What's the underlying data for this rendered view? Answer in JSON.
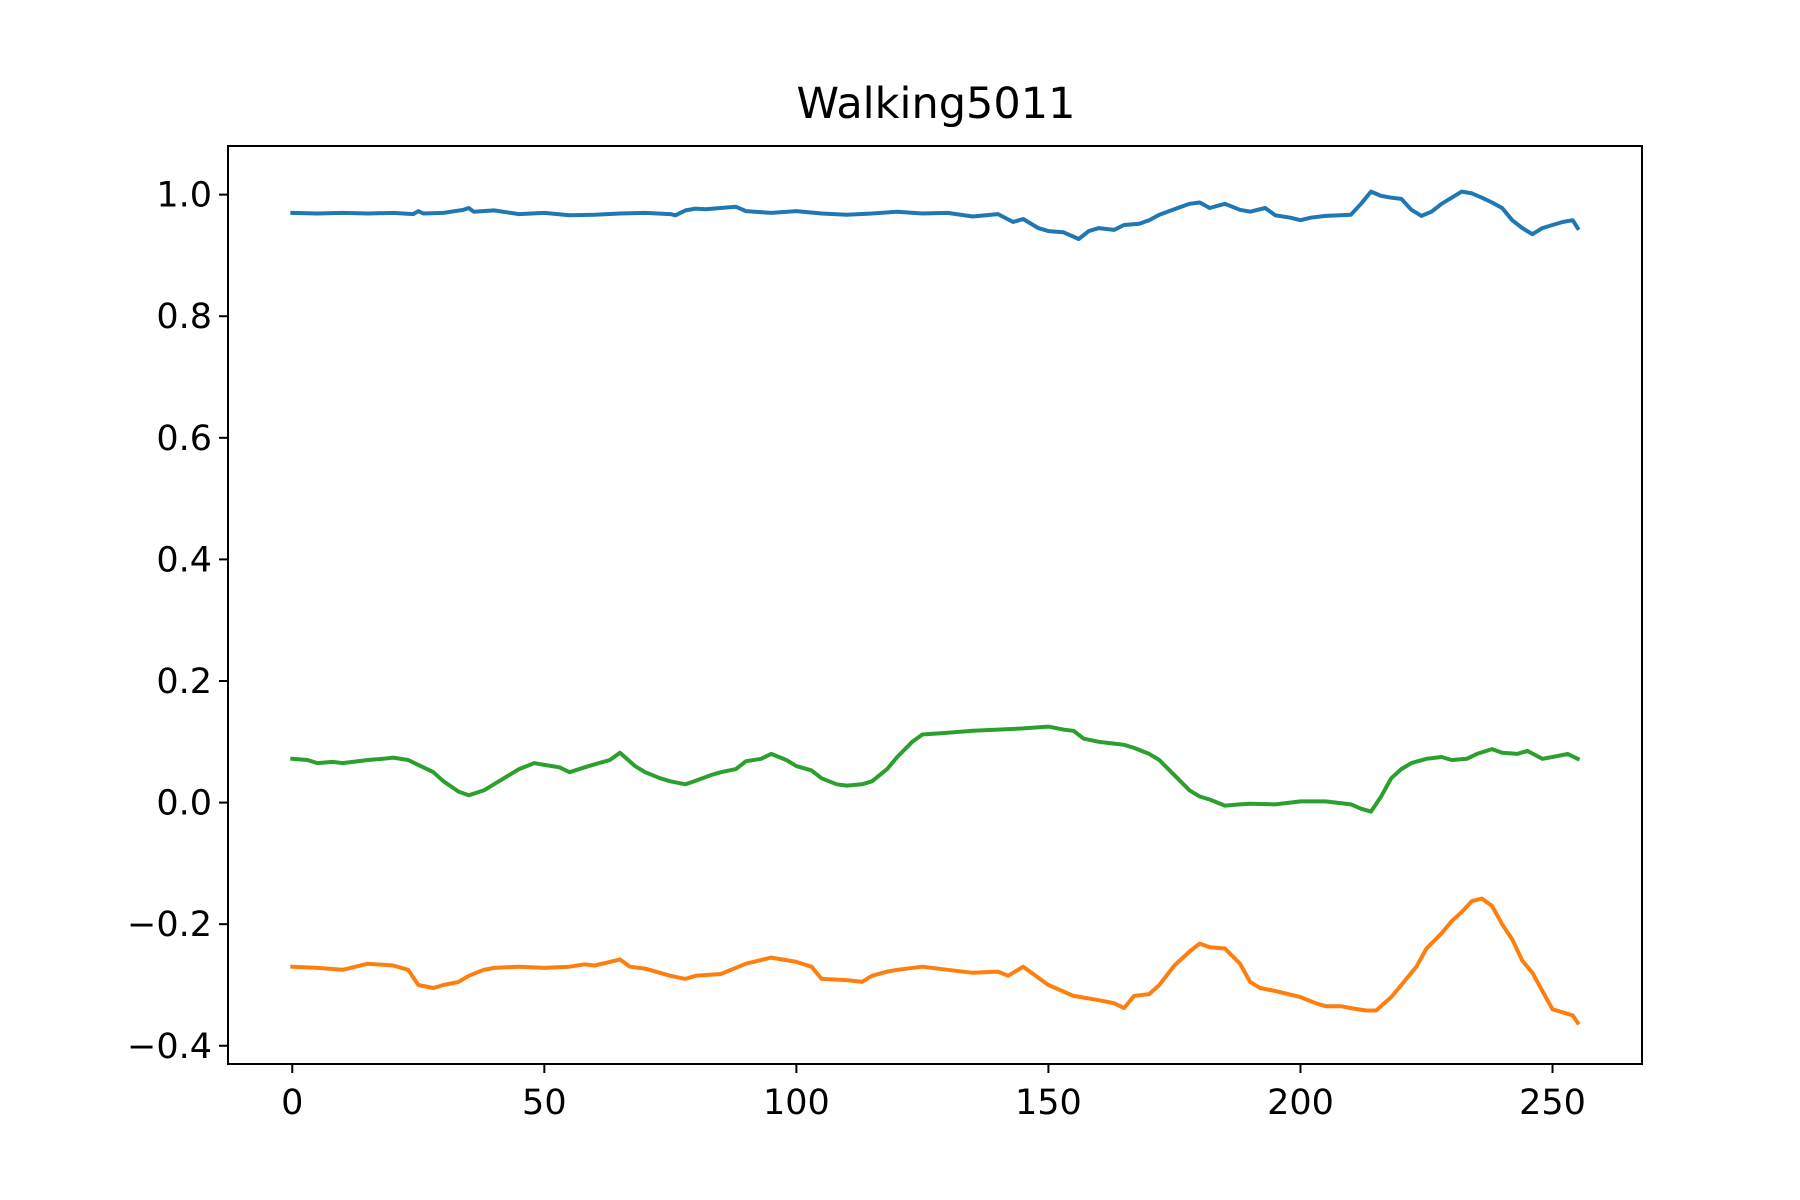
{
  "chart_data": {
    "type": "line",
    "title": "Walking5011",
    "xlabel": "",
    "ylabel": "",
    "xlim": [
      -12.75,
      267.75
    ],
    "ylim": [
      -0.43,
      1.08
    ],
    "xticks": [
      0,
      50,
      100,
      150,
      200,
      250
    ],
    "yticks": [
      -0.4,
      -0.2,
      0.0,
      0.2,
      0.4,
      0.6,
      0.8,
      1.0
    ],
    "xtick_labels": [
      "0",
      "50",
      "100",
      "150",
      "200",
      "250"
    ],
    "ytick_labels": [
      "−0.4",
      "−0.2",
      "0.0",
      "0.2",
      "0.4",
      "0.6",
      "0.8",
      "1.0"
    ],
    "grid": false,
    "legend": "none",
    "series": [
      {
        "color": "#1f77b4",
        "x": [
          0,
          5,
          10,
          15,
          20,
          24,
          25,
          26,
          30,
          34,
          35,
          36,
          40,
          45,
          50,
          55,
          60,
          65,
          70,
          75,
          76,
          78,
          80,
          82,
          85,
          88,
          90,
          95,
          100,
          105,
          110,
          115,
          120,
          125,
          130,
          135,
          140,
          143,
          145,
          148,
          150,
          153,
          156,
          158,
          160,
          163,
          165,
          168,
          170,
          172,
          175,
          178,
          180,
          182,
          185,
          188,
          190,
          193,
          195,
          198,
          200,
          202,
          205,
          208,
          210,
          212,
          214,
          216,
          218,
          220,
          222,
          224,
          226,
          228,
          230,
          232,
          234,
          236,
          238,
          240,
          242,
          244,
          246,
          248,
          250,
          252,
          254,
          255
        ],
        "y": [
          0.97,
          0.969,
          0.97,
          0.969,
          0.97,
          0.968,
          0.973,
          0.969,
          0.97,
          0.975,
          0.978,
          0.972,
          0.974,
          0.968,
          0.97,
          0.966,
          0.967,
          0.969,
          0.97,
          0.968,
          0.966,
          0.974,
          0.977,
          0.976,
          0.978,
          0.98,
          0.973,
          0.97,
          0.973,
          0.969,
          0.967,
          0.969,
          0.972,
          0.969,
          0.97,
          0.964,
          0.968,
          0.955,
          0.96,
          0.945,
          0.94,
          0.938,
          0.927,
          0.94,
          0.945,
          0.942,
          0.95,
          0.952,
          0.958,
          0.967,
          0.976,
          0.985,
          0.987,
          0.978,
          0.985,
          0.975,
          0.972,
          0.978,
          0.966,
          0.962,
          0.958,
          0.962,
          0.965,
          0.966,
          0.967,
          0.985,
          1.005,
          0.998,
          0.995,
          0.993,
          0.975,
          0.965,
          0.972,
          0.985,
          0.995,
          1.005,
          1.002,
          0.995,
          0.987,
          0.978,
          0.958,
          0.945,
          0.935,
          0.945,
          0.95,
          0.955,
          0.958,
          0.945
        ]
      },
      {
        "color": "#ff7f0e",
        "x": [
          0,
          5,
          10,
          15,
          20,
          23,
          25,
          28,
          30,
          33,
          35,
          38,
          40,
          45,
          50,
          55,
          58,
          60,
          63,
          65,
          67,
          70,
          75,
          78,
          80,
          85,
          90,
          95,
          100,
          103,
          105,
          110,
          113,
          115,
          118,
          120,
          125,
          130,
          135,
          140,
          142,
          145,
          150,
          155,
          160,
          163,
          165,
          167,
          170,
          172,
          175,
          178,
          180,
          182,
          185,
          188,
          190,
          192,
          195,
          200,
          203,
          205,
          208,
          210,
          213,
          215,
          218,
          220,
          223,
          225,
          228,
          230,
          232,
          234,
          236,
          238,
          240,
          242,
          244,
          246,
          248,
          250,
          252,
          254,
          255
        ],
        "y": [
          -0.27,
          -0.272,
          -0.275,
          -0.265,
          -0.268,
          -0.275,
          -0.3,
          -0.305,
          -0.3,
          -0.295,
          -0.285,
          -0.275,
          -0.272,
          -0.27,
          -0.272,
          -0.27,
          -0.266,
          -0.268,
          -0.262,
          -0.258,
          -0.27,
          -0.273,
          -0.285,
          -0.29,
          -0.285,
          -0.282,
          -0.265,
          -0.255,
          -0.262,
          -0.27,
          -0.29,
          -0.292,
          -0.295,
          -0.285,
          -0.278,
          -0.275,
          -0.27,
          -0.275,
          -0.28,
          -0.278,
          -0.285,
          -0.27,
          -0.3,
          -0.318,
          -0.325,
          -0.33,
          -0.338,
          -0.318,
          -0.315,
          -0.3,
          -0.268,
          -0.245,
          -0.232,
          -0.238,
          -0.24,
          -0.265,
          -0.295,
          -0.305,
          -0.31,
          -0.32,
          -0.33,
          -0.335,
          -0.335,
          -0.338,
          -0.342,
          -0.342,
          -0.32,
          -0.3,
          -0.27,
          -0.24,
          -0.215,
          -0.195,
          -0.18,
          -0.162,
          -0.158,
          -0.17,
          -0.2,
          -0.225,
          -0.26,
          -0.28,
          -0.31,
          -0.34,
          -0.345,
          -0.35,
          -0.362
        ]
      },
      {
        "color": "#2ca02c",
        "x": [
          0,
          3,
          5,
          8,
          10,
          15,
          18,
          20,
          23,
          25,
          28,
          30,
          33,
          35,
          38,
          40,
          43,
          45,
          48,
          50,
          53,
          55,
          58,
          60,
          63,
          65,
          68,
          70,
          73,
          75,
          78,
          80,
          83,
          85,
          88,
          90,
          93,
          95,
          98,
          100,
          103,
          105,
          108,
          110,
          113,
          115,
          118,
          120,
          123,
          125,
          130,
          135,
          140,
          145,
          150,
          153,
          155,
          157,
          160,
          163,
          165,
          167,
          170,
          172,
          175,
          178,
          180,
          182,
          185,
          188,
          190,
          195,
          200,
          205,
          210,
          212,
          214,
          216,
          218,
          220,
          222,
          225,
          228,
          230,
          233,
          235,
          238,
          240,
          243,
          245,
          248,
          250,
          253,
          255
        ],
        "y": [
          0.072,
          0.07,
          0.065,
          0.067,
          0.065,
          0.07,
          0.072,
          0.074,
          0.07,
          0.062,
          0.05,
          0.035,
          0.018,
          0.012,
          0.02,
          0.03,
          0.045,
          0.055,
          0.065,
          0.062,
          0.058,
          0.05,
          0.058,
          0.063,
          0.07,
          0.082,
          0.06,
          0.05,
          0.04,
          0.035,
          0.03,
          0.036,
          0.045,
          0.05,
          0.055,
          0.068,
          0.072,
          0.08,
          0.07,
          0.06,
          0.053,
          0.04,
          0.03,
          0.028,
          0.03,
          0.035,
          0.055,
          0.075,
          0.1,
          0.112,
          0.115,
          0.118,
          0.12,
          0.122,
          0.125,
          0.12,
          0.118,
          0.105,
          0.1,
          0.097,
          0.095,
          0.09,
          0.08,
          0.07,
          0.045,
          0.02,
          0.01,
          0.005,
          -0.005,
          -0.003,
          -0.002,
          -0.003,
          0.002,
          0.002,
          -0.003,
          -0.01,
          -0.015,
          0.01,
          0.04,
          0.055,
          0.065,
          0.072,
          0.075,
          0.07,
          0.072,
          0.08,
          0.088,
          0.082,
          0.08,
          0.085,
          0.072,
          0.075,
          0.08,
          0.072
        ]
      }
    ]
  }
}
